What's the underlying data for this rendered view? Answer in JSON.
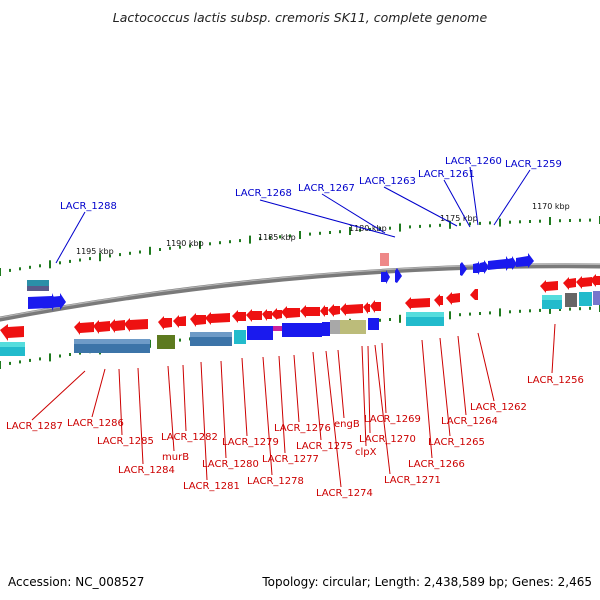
{
  "title": "Lactococcus lactis subsp. cremoris SK11, complete genome",
  "footer": {
    "accession": "Accession: NC_008527",
    "summary": "Topology: circular; Length: 2,438,589 bp; Genes: 2,465"
  },
  "colors": {
    "forward_label": "#0000cc",
    "reverse_label": "#cc0000",
    "forward_gene": "#1a1aee",
    "reverse_gene": "#ee1111",
    "backbone": "#7a7a7a",
    "tick": "#1f7a1f"
  },
  "scale_labels": [
    "1195 kbp",
    "1190 kbp",
    "1185 kbp",
    "1180 kbp",
    "1175 kbp",
    "1170 kbp"
  ],
  "forward_labels": [
    "LACR_1288",
    "LACR_1268",
    "LACR_1267",
    "LACR_1263",
    "LACR_1261",
    "LACR_1260",
    "LACR_1259"
  ],
  "reverse_labels": [
    "LACR_1287",
    "LACR_1286",
    "LACR_1285",
    "LACR_1284",
    "murB",
    "LACR_1282",
    "LACR_1281",
    "LACR_1280",
    "LACR_1279",
    "LACR_1278",
    "LACR_1277",
    "LACR_1276",
    "LACR_1275",
    "LACR_1274",
    "engB",
    "clpX",
    "LACR_1270",
    "LACR_1271",
    "LACR_1269",
    "LACR_1266",
    "LACR_1265",
    "LACR_1264",
    "LACR_1262",
    "LACR_1256"
  ]
}
